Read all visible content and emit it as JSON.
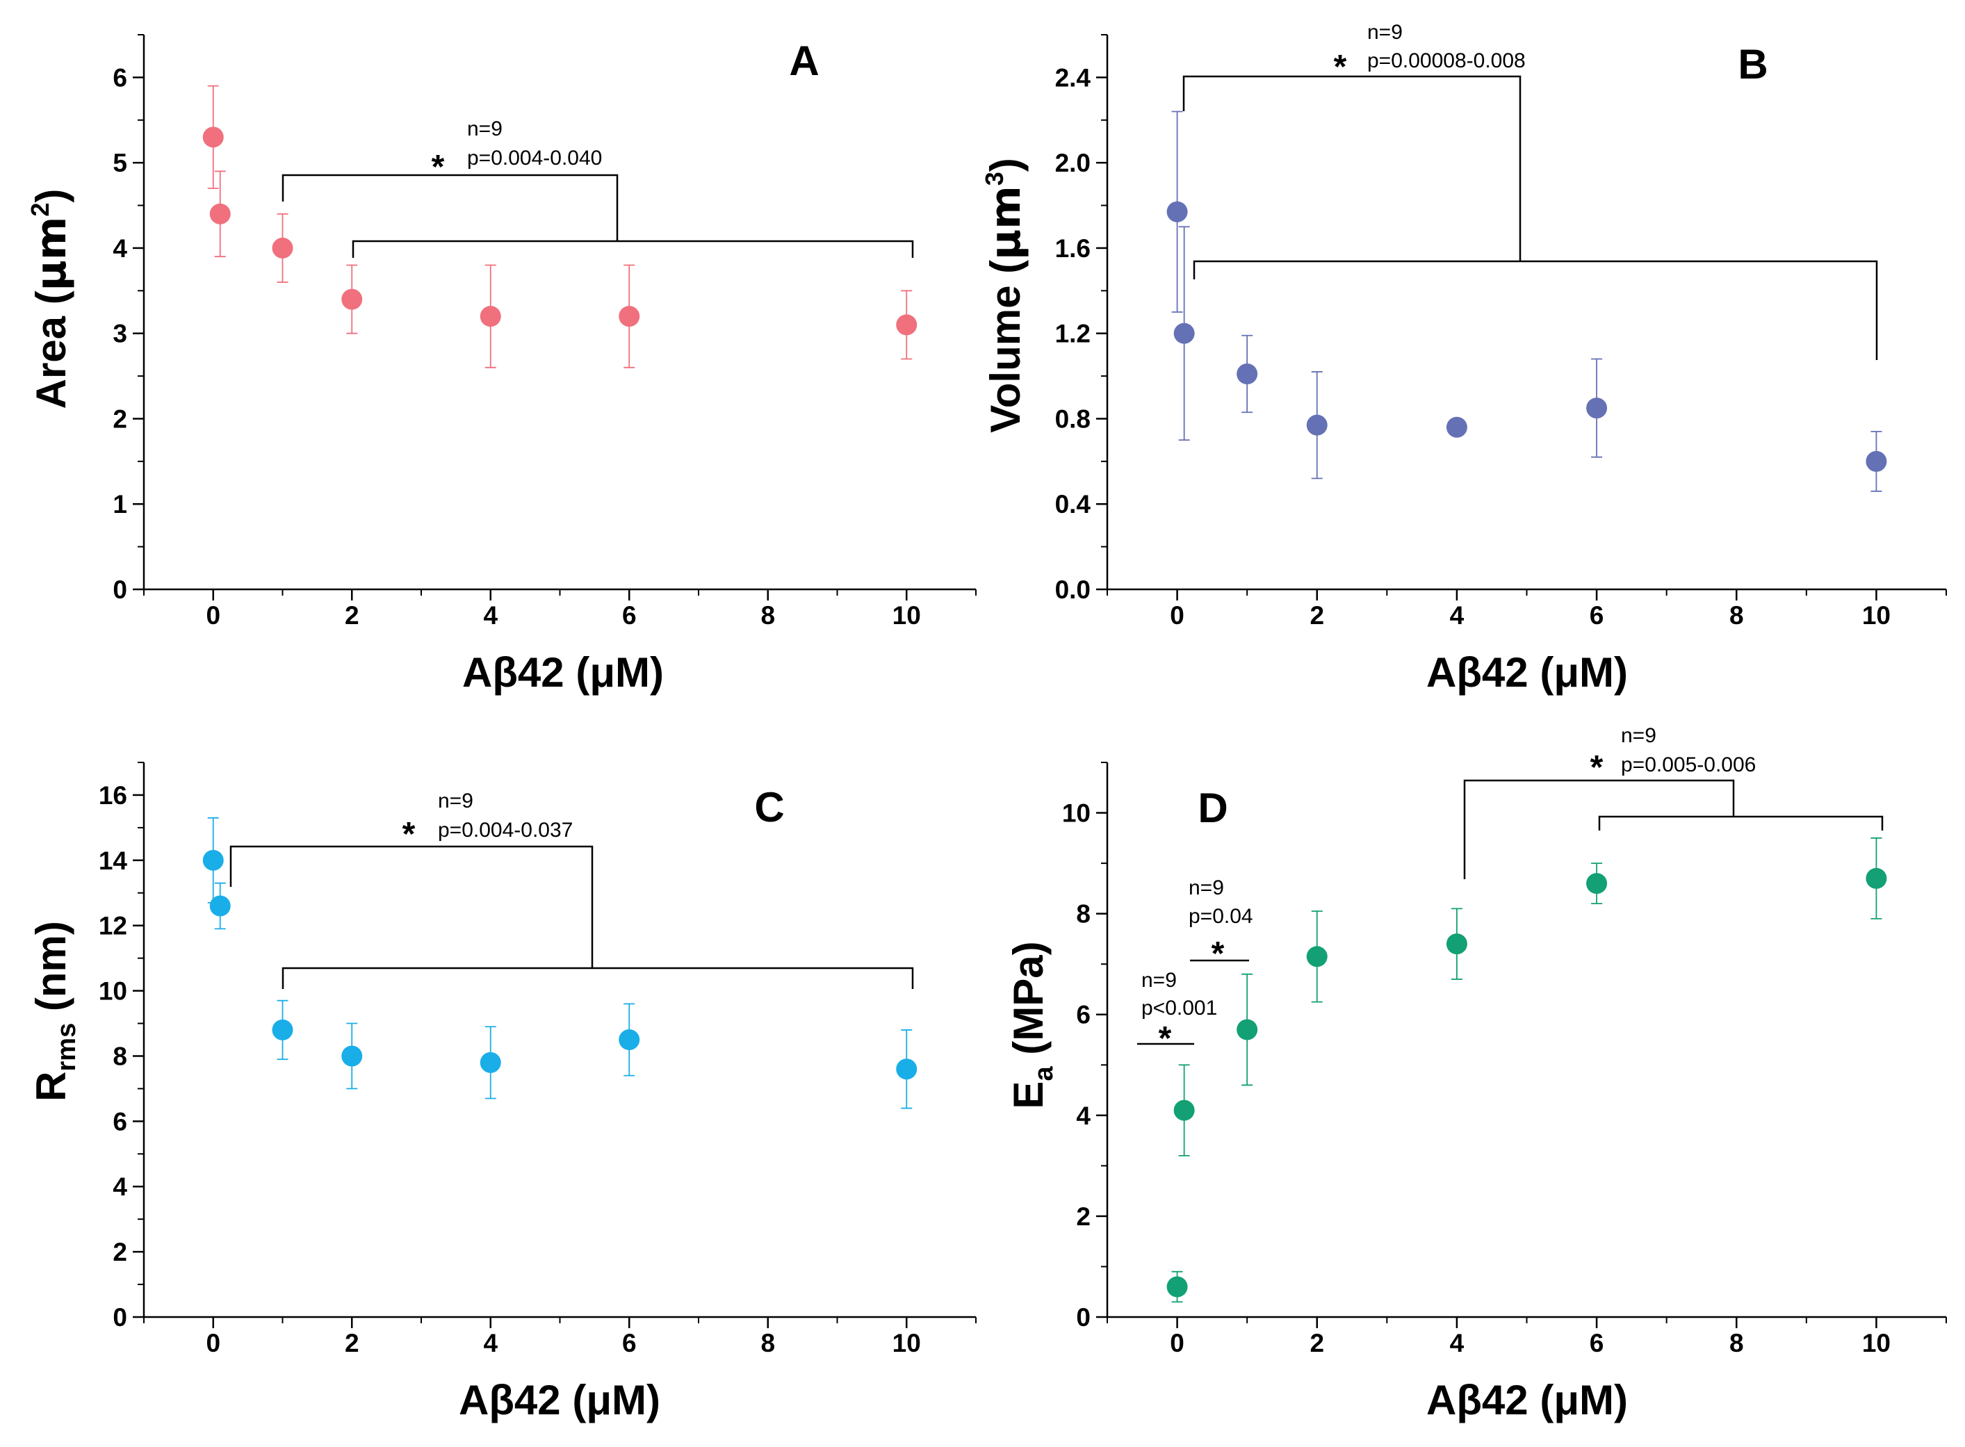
{
  "chart_data": [
    {
      "type": "scatter",
      "panel": "A",
      "ylabel_main": "Area (",
      "ylabel_unit": "μm",
      "ylabel_sup": "2",
      "ylabel_close": ")",
      "xlabel": "Aβ42 (μM)",
      "xlim": [
        -1,
        11
      ],
      "ylim": [
        0,
        6.5
      ],
      "xticks": [
        0,
        2,
        4,
        6,
        8,
        10
      ],
      "xtick_labels": [
        "0",
        "2",
        "4",
        "6",
        "8",
        "10"
      ],
      "yticks": [
        0,
        1,
        2,
        3,
        4,
        5,
        6
      ],
      "ytick_labels": [
        "0",
        "1",
        "2",
        "3",
        "4",
        "5",
        "6"
      ],
      "color": "#f0707e",
      "points": [
        {
          "x": 0,
          "y": 5.3,
          "err": 0.6
        },
        {
          "x": 0.1,
          "y": 4.4,
          "err": 0.5
        },
        {
          "x": 1,
          "y": 4.0,
          "err": 0.4
        },
        {
          "x": 2,
          "y": 3.4,
          "err": 0.4
        },
        {
          "x": 4,
          "y": 3.2,
          "err": 0.6
        },
        {
          "x": 6,
          "y": 3.2,
          "err": 0.6
        },
        {
          "x": 10,
          "y": 3.1,
          "err": 0.4
        }
      ],
      "annotations": [
        {
          "star": "*",
          "lines": [
            "n=9",
            "p=0.004-0.040"
          ]
        }
      ]
    },
    {
      "type": "scatter",
      "panel": "B",
      "ylabel_main": "Volume (",
      "ylabel_unit": "μm",
      "ylabel_sup": "3",
      "ylabel_close": ")",
      "xlabel": "Aβ42 (μM)",
      "xlim": [
        -1,
        11
      ],
      "ylim": [
        0,
        2.6
      ],
      "xticks": [
        0,
        2,
        4,
        6,
        8,
        10
      ],
      "xtick_labels": [
        "0",
        "2",
        "4",
        "6",
        "8",
        "10"
      ],
      "yticks": [
        0,
        0.4,
        0.8,
        1.2,
        1.6,
        2.0,
        2.4
      ],
      "ytick_labels": [
        "0.0",
        "0.4",
        "0.8",
        "1.2",
        "1.6",
        "2.0",
        "2.4"
      ],
      "color": "#6571b5",
      "points": [
        {
          "x": 0,
          "y": 1.77,
          "err": 0.47
        },
        {
          "x": 0.1,
          "y": 1.2,
          "err": 0.5
        },
        {
          "x": 1,
          "y": 1.01,
          "err": 0.18
        },
        {
          "x": 2,
          "y": 0.77,
          "err": 0.25
        },
        {
          "x": 4,
          "y": 0.76,
          "err": 0
        },
        {
          "x": 6,
          "y": 0.85,
          "err": 0.23
        },
        {
          "x": 10,
          "y": 0.6,
          "err": 0.14
        }
      ],
      "annotations": [
        {
          "star": "*",
          "lines": [
            "n=9",
            "p=0.00008-0.008"
          ]
        }
      ]
    },
    {
      "type": "scatter",
      "panel": "C",
      "ylabel_main": "R",
      "ylabel_sub": "rms",
      "ylabel_close": " (nm)",
      "xlabel": "Aβ42 (μM)",
      "xlim": [
        -1,
        11
      ],
      "ylim": [
        0,
        17
      ],
      "xticks": [
        0,
        2,
        4,
        6,
        8,
        10
      ],
      "xtick_labels": [
        "0",
        "2",
        "4",
        "6",
        "8",
        "10"
      ],
      "yticks": [
        0,
        2,
        4,
        6,
        8,
        10,
        12,
        14,
        16
      ],
      "ytick_labels": [
        "0",
        "2",
        "4",
        "6",
        "8",
        "10",
        "12",
        "14",
        "16"
      ],
      "color": "#1aaee8",
      "points": [
        {
          "x": 0,
          "y": 14.0,
          "err": 1.3
        },
        {
          "x": 0.1,
          "y": 12.6,
          "err": 0.7
        },
        {
          "x": 1,
          "y": 8.8,
          "err": 0.9
        },
        {
          "x": 2,
          "y": 8.0,
          "err": 1.0
        },
        {
          "x": 4,
          "y": 7.8,
          "err": 1.1
        },
        {
          "x": 6,
          "y": 8.5,
          "err": 1.1
        },
        {
          "x": 10,
          "y": 7.6,
          "err": 1.2
        }
      ],
      "annotations": [
        {
          "star": "*",
          "lines": [
            "n=9",
            "p=0.004-0.037"
          ]
        }
      ]
    },
    {
      "type": "scatter",
      "panel": "D",
      "ylabel_main": "E",
      "ylabel_sub": "a",
      "ylabel_close": " (MPa)",
      "xlabel": "Aβ42 (μM)",
      "xlim": [
        -1,
        11
      ],
      "ylim": [
        0,
        11
      ],
      "xticks": [
        0,
        2,
        4,
        6,
        8,
        10
      ],
      "xtick_labels": [
        "0",
        "2",
        "4",
        "6",
        "8",
        "10"
      ],
      "yticks": [
        0,
        2,
        4,
        6,
        8,
        10
      ],
      "ytick_labels": [
        "0",
        "2",
        "4",
        "6",
        "8",
        "10"
      ],
      "color": "#12a074",
      "points": [
        {
          "x": 0,
          "y": 0.6,
          "err": 0.3
        },
        {
          "x": 0.1,
          "y": 4.1,
          "err": 0.9
        },
        {
          "x": 1,
          "y": 5.7,
          "err": 1.1
        },
        {
          "x": 2,
          "y": 7.15,
          "err": 0.9
        },
        {
          "x": 4,
          "y": 7.4,
          "err": 0.7
        },
        {
          "x": 6,
          "y": 8.6,
          "err": 0.4
        },
        {
          "x": 10,
          "y": 8.7,
          "err": 0.8
        }
      ],
      "annotations": [
        {
          "star": "*",
          "lines": [
            "n=9",
            "p<0.001"
          ]
        },
        {
          "star": "*",
          "lines": [
            "n=9",
            "p=0.04"
          ]
        },
        {
          "star": "*",
          "lines": [
            "n=9",
            "p=0.005-0.006"
          ]
        }
      ]
    }
  ]
}
